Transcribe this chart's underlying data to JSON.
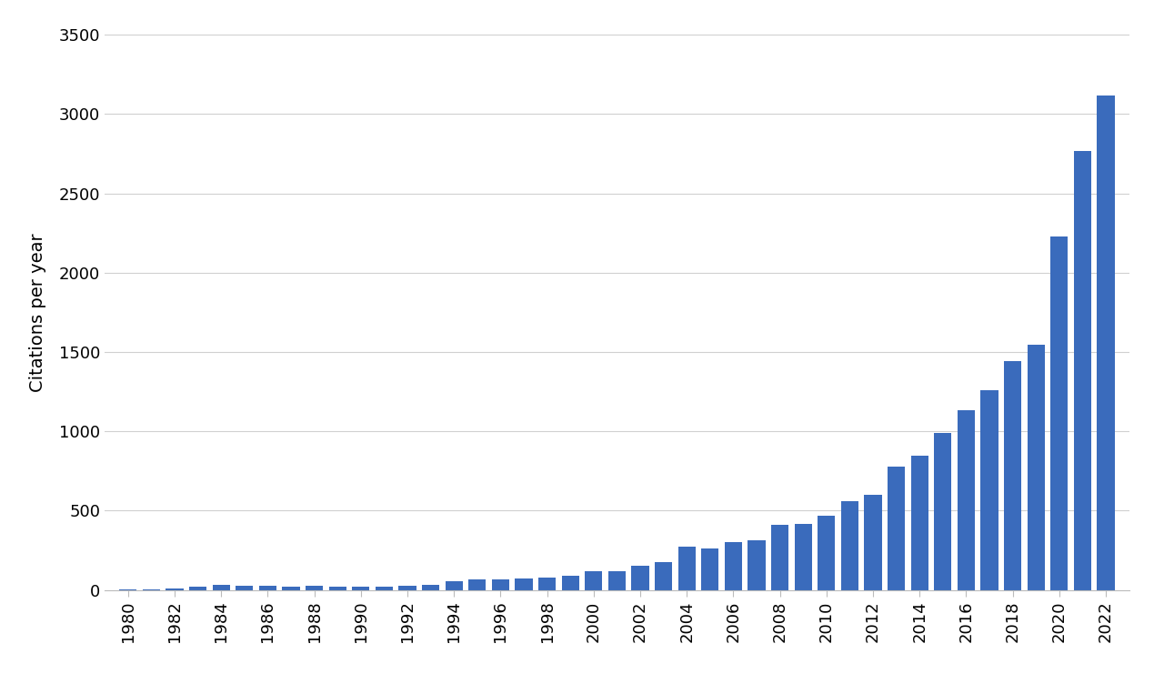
{
  "years": [
    1980,
    1981,
    1982,
    1983,
    1984,
    1985,
    1986,
    1987,
    1988,
    1989,
    1990,
    1991,
    1992,
    1993,
    1994,
    1995,
    1996,
    1997,
    1998,
    1999,
    2000,
    2001,
    2002,
    2003,
    2004,
    2005,
    2006,
    2007,
    2008,
    2009,
    2010,
    2011,
    2012,
    2013,
    2014,
    2015,
    2016,
    2017,
    2018,
    2019,
    2020,
    2021,
    2022
  ],
  "values": [
    3,
    5,
    10,
    20,
    30,
    28,
    25,
    22,
    25,
    20,
    20,
    22,
    25,
    30,
    55,
    65,
    68,
    70,
    80,
    90,
    115,
    120,
    155,
    175,
    275,
    260,
    300,
    315,
    410,
    415,
    470,
    560,
    600,
    780,
    845,
    990,
    1130,
    1260,
    1440,
    1545,
    2230,
    2765,
    3115
  ],
  "bar_color": "#3a6bbc",
  "ylabel": "Citations per year",
  "ylim": [
    0,
    3500
  ],
  "yticks": [
    0,
    500,
    1000,
    1500,
    2000,
    2500,
    3000,
    3500
  ],
  "background_color": "#ffffff",
  "grid_color": "#d0d0d0",
  "figure_facecolor": "#ffffff"
}
